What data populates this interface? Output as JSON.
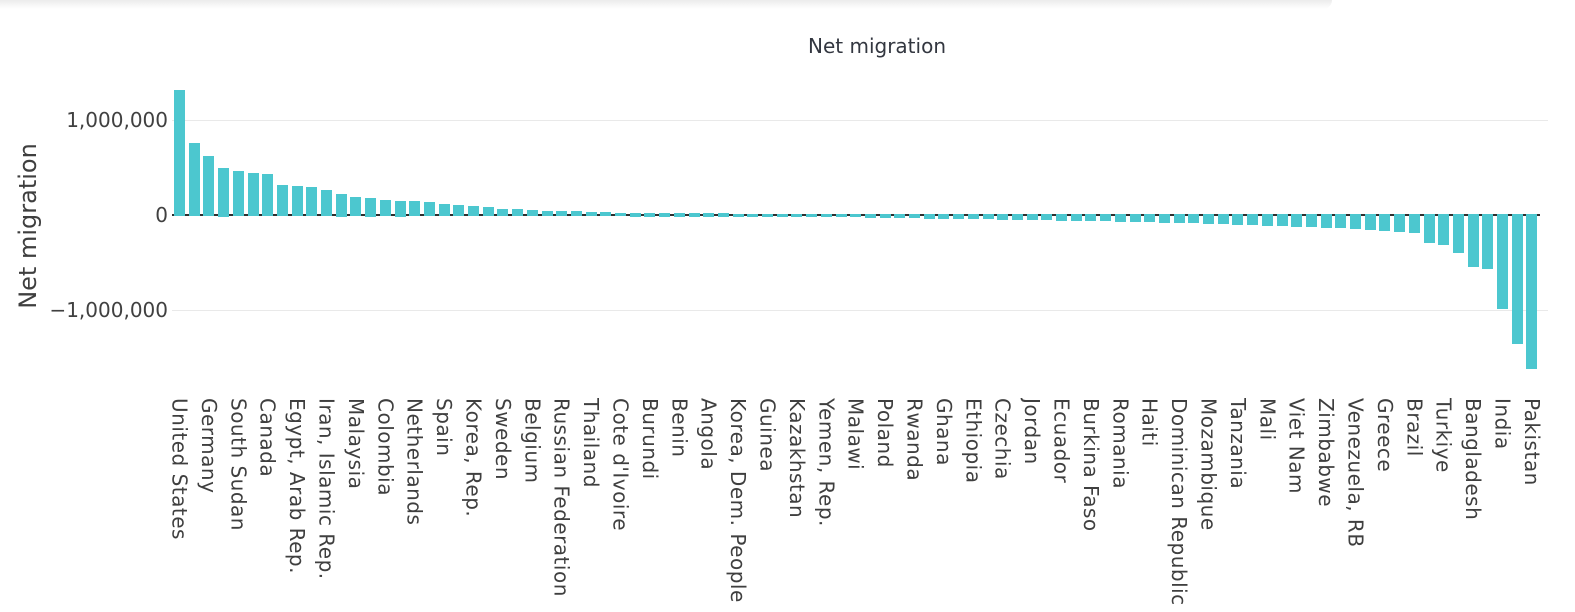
{
  "page": {
    "background": "#ffffff"
  },
  "legend": {
    "label": "Net migration",
    "swatch_color": "#4cc7cf"
  },
  "y_axis": {
    "title": "Net migration",
    "ticks": [
      {
        "label": "1,000,000",
        "value": 1000000,
        "gridline": true
      },
      {
        "label": "0",
        "value": 0,
        "gridline": false
      },
      {
        "label": "−1,000,000",
        "value": -1000000,
        "gridline": true
      }
    ]
  },
  "chart_data": {
    "type": "bar",
    "title": "",
    "series_name": "Net migration",
    "bar_color": "#4cc7cf",
    "ylabel": "Net migration",
    "ylim": [
      -1800000,
      1500000
    ],
    "grid": "horizontal",
    "legend_position": "top-center",
    "x_labels_shown_every": 2,
    "bars": [
      {
        "label": "United States",
        "value": 1320000
      },
      {
        "label": "",
        "value": 760000
      },
      {
        "label": "Germany",
        "value": 620000
      },
      {
        "label": "",
        "value": 500000
      },
      {
        "label": "South Sudan",
        "value": 460000
      },
      {
        "label": "",
        "value": 445000
      },
      {
        "label": "Canada",
        "value": 435000
      },
      {
        "label": "",
        "value": 320000
      },
      {
        "label": "Egypt, Arab Rep.",
        "value": 305000
      },
      {
        "label": "",
        "value": 290000
      },
      {
        "label": "Iran, Islamic Rep.",
        "value": 265000
      },
      {
        "label": "",
        "value": 225000
      },
      {
        "label": "Malaysia",
        "value": 190000
      },
      {
        "label": "",
        "value": 175000
      },
      {
        "label": "Colombia",
        "value": 160000
      },
      {
        "label": "",
        "value": 150000
      },
      {
        "label": "Netherlands",
        "value": 145000
      },
      {
        "label": "",
        "value": 138000
      },
      {
        "label": "Spain",
        "value": 115000
      },
      {
        "label": "",
        "value": 105000
      },
      {
        "label": "Korea, Rep.",
        "value": 97000
      },
      {
        "label": "",
        "value": 88000
      },
      {
        "label": "Sweden",
        "value": 64000
      },
      {
        "label": "",
        "value": 60000
      },
      {
        "label": "Belgium",
        "value": 53000
      },
      {
        "label": "",
        "value": 46000
      },
      {
        "label": "Russian Federation",
        "value": 40000
      },
      {
        "label": "",
        "value": 37000
      },
      {
        "label": "Thailand",
        "value": 32000
      },
      {
        "label": "",
        "value": 28000
      },
      {
        "label": "Cote d'Ivoire",
        "value": 24000
      },
      {
        "label": "",
        "value": 21000
      },
      {
        "label": "Burundi",
        "value": 19000
      },
      {
        "label": "",
        "value": 17000
      },
      {
        "label": "Benin",
        "value": 15000
      },
      {
        "label": "",
        "value": 12000
      },
      {
        "label": "Angola",
        "value": 9000
      },
      {
        "label": "",
        "value": 5000
      },
      {
        "label": "Korea, Dem. People",
        "value": -2000
      },
      {
        "label": "",
        "value": -5000
      },
      {
        "label": "Guinea",
        "value": -8000
      },
      {
        "label": "",
        "value": -11000
      },
      {
        "label": "Kazakhstan",
        "value": -14000
      },
      {
        "label": "",
        "value": -17000
      },
      {
        "label": "Yemen, Rep.",
        "value": -20000
      },
      {
        "label": "",
        "value": -23000
      },
      {
        "label": "Malawi",
        "value": -26000
      },
      {
        "label": "",
        "value": -29000
      },
      {
        "label": "Poland",
        "value": -32000
      },
      {
        "label": "",
        "value": -34000
      },
      {
        "label": "Rwanda",
        "value": -36000
      },
      {
        "label": "",
        "value": -38000
      },
      {
        "label": "Ghana",
        "value": -40000
      },
      {
        "label": "",
        "value": -42000
      },
      {
        "label": "Ethiopia",
        "value": -44000
      },
      {
        "label": "",
        "value": -46000
      },
      {
        "label": "Czechia",
        "value": -48000
      },
      {
        "label": "",
        "value": -50000
      },
      {
        "label": "Jordan",
        "value": -52000
      },
      {
        "label": "",
        "value": -55000
      },
      {
        "label": "Ecuador",
        "value": -58000
      },
      {
        "label": "",
        "value": -61000
      },
      {
        "label": "Burkina Faso",
        "value": -64000
      },
      {
        "label": "",
        "value": -67000
      },
      {
        "label": "Romania",
        "value": -70000
      },
      {
        "label": "",
        "value": -73000
      },
      {
        "label": "Haiti",
        "value": -77000
      },
      {
        "label": "",
        "value": -81000
      },
      {
        "label": "Dominican Republic",
        "value": -85000
      },
      {
        "label": "",
        "value": -89000
      },
      {
        "label": "Mozambique",
        "value": -93000
      },
      {
        "label": "",
        "value": -97000
      },
      {
        "label": "Tanzania",
        "value": -101000
      },
      {
        "label": "",
        "value": -106000
      },
      {
        "label": "Mali",
        "value": -111000
      },
      {
        "label": "",
        "value": -116000
      },
      {
        "label": "Viet Nam",
        "value": -122000
      },
      {
        "label": "",
        "value": -128000
      },
      {
        "label": "Zimbabwe",
        "value": -135000
      },
      {
        "label": "",
        "value": -142000
      },
      {
        "label": "Venezuela, RB",
        "value": -150000
      },
      {
        "label": "",
        "value": -158000
      },
      {
        "label": "Greece",
        "value": -167000
      },
      {
        "label": "",
        "value": -176000
      },
      {
        "label": "Brazil",
        "value": -187000
      },
      {
        "label": "",
        "value": -290000
      },
      {
        "label": "Turkiye",
        "value": -320000
      },
      {
        "label": "",
        "value": -400000
      },
      {
        "label": "Bangladesh",
        "value": -545000
      },
      {
        "label": "",
        "value": -570000
      },
      {
        "label": "India",
        "value": -990000
      },
      {
        "label": "",
        "value": -1360000
      },
      {
        "label": "Pakistan",
        "value": -1620000
      }
    ]
  }
}
